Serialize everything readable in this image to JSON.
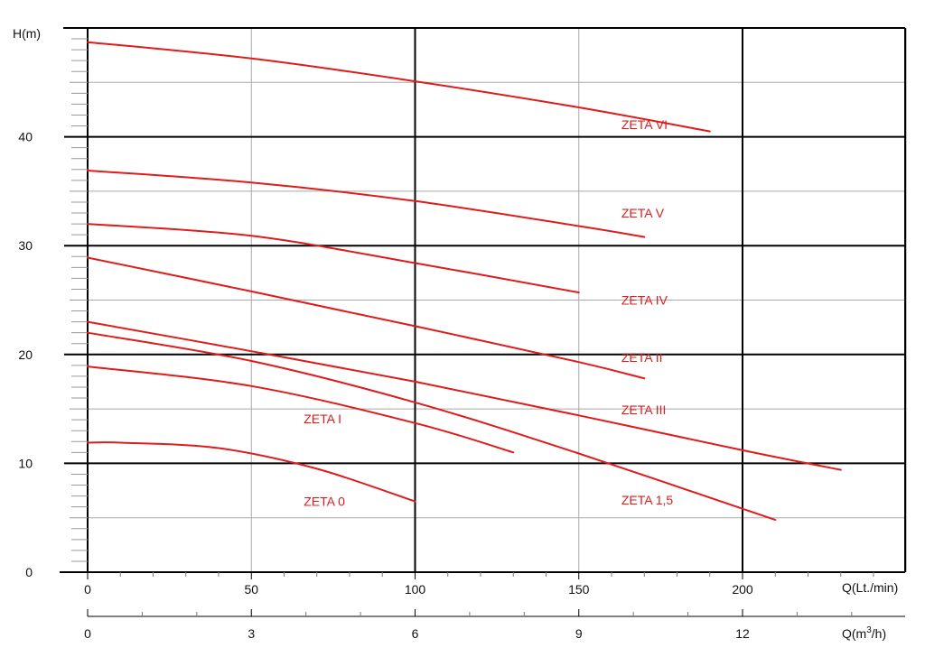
{
  "chart_data": {
    "type": "line",
    "title": "",
    "ylabel": "H(m)",
    "xlabel": "Q(Lt./min)",
    "x2label_pre": "Q(m",
    "x2label_sup": "3",
    "x2label_post": "/h)",
    "ylim": [
      0,
      50
    ],
    "xlim": [
      0,
      250
    ],
    "x2lim": [
      0,
      15
    ],
    "y_ticks": [
      0,
      10,
      20,
      30,
      40
    ],
    "x_ticks": [
      0,
      50,
      100,
      150,
      200
    ],
    "x2_ticks": [
      0,
      3,
      6,
      9,
      12
    ],
    "grid": true,
    "line_color": "#e01b1b",
    "series": [
      {
        "name": "ZETA VI",
        "x": [
          0,
          50,
          100,
          150,
          190
        ],
        "y": [
          48.7,
          47.2,
          45.1,
          42.7,
          40.5
        ],
        "label_at": [
          163,
          40.7
        ]
      },
      {
        "name": "ZETA V",
        "x": [
          0,
          50,
          100,
          150,
          170
        ],
        "y": [
          36.9,
          35.8,
          34.1,
          31.8,
          30.8
        ],
        "label_at": [
          163,
          32.6
        ]
      },
      {
        "name": "ZETA IV",
        "x": [
          0,
          50,
          100,
          150
        ],
        "y": [
          32.0,
          30.9,
          28.4,
          25.7
        ],
        "label_at": [
          163,
          24.6
        ]
      },
      {
        "name": "ZETA II",
        "x": [
          0,
          50,
          100,
          150,
          170
        ],
        "y": [
          28.9,
          25.8,
          22.6,
          19.3,
          17.8
        ],
        "label_at": [
          163,
          19.3
        ]
      },
      {
        "name": "ZETA III",
        "x": [
          0,
          50,
          100,
          150,
          200,
          230
        ],
        "y": [
          23.0,
          20.3,
          17.5,
          14.4,
          11.2,
          9.4
        ],
        "label_at": [
          163,
          14.5
        ]
      },
      {
        "name": "ZETA 1,5",
        "x": [
          0,
          50,
          100,
          150,
          210
        ],
        "y": [
          22.0,
          19.4,
          15.6,
          10.9,
          4.8
        ],
        "label_at": [
          163,
          6.2
        ]
      },
      {
        "name": "ZETA I",
        "x": [
          0,
          50,
          100,
          130
        ],
        "y": [
          18.9,
          17.1,
          13.7,
          11.0
        ],
        "label_at": [
          66,
          13.7
        ]
      },
      {
        "name": "ZETA 0",
        "x": [
          0,
          10,
          40,
          70,
          100
        ],
        "y": [
          11.9,
          11.9,
          11.4,
          9.5,
          6.5
        ],
        "label_at": [
          66,
          6.1
        ]
      }
    ]
  }
}
